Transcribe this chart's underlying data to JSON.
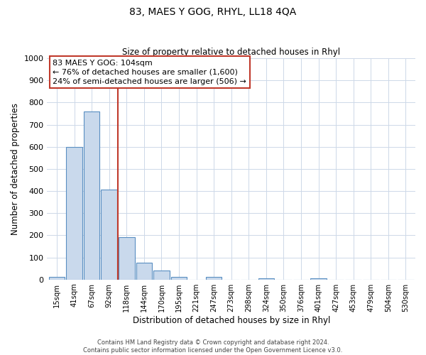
{
  "title": "83, MAES Y GOG, RHYL, LL18 4QA",
  "subtitle": "Size of property relative to detached houses in Rhyl",
  "xlabel": "Distribution of detached houses by size in Rhyl",
  "ylabel": "Number of detached properties",
  "bar_labels": [
    "15sqm",
    "41sqm",
    "67sqm",
    "92sqm",
    "118sqm",
    "144sqm",
    "170sqm",
    "195sqm",
    "221sqm",
    "247sqm",
    "273sqm",
    "298sqm",
    "324sqm",
    "350sqm",
    "376sqm",
    "401sqm",
    "427sqm",
    "453sqm",
    "479sqm",
    "504sqm",
    "530sqm"
  ],
  "bar_values": [
    12,
    600,
    760,
    405,
    190,
    75,
    40,
    12,
    0,
    13,
    0,
    0,
    7,
    0,
    0,
    7,
    0,
    0,
    0,
    0,
    0
  ],
  "bar_color": "#c9d9ec",
  "bar_edge_color": "#5a8fc2",
  "vline_x": 3.5,
  "vline_color": "#c0392b",
  "annotation_box_text": "83 MAES Y GOG: 104sqm\n← 76% of detached houses are smaller (1,600)\n24% of semi-detached houses are larger (506) →",
  "ylim": [
    0,
    1000
  ],
  "yticks": [
    0,
    100,
    200,
    300,
    400,
    500,
    600,
    700,
    800,
    900,
    1000
  ],
  "footer_text": "Contains HM Land Registry data © Crown copyright and database right 2024.\nContains public sector information licensed under the Open Government Licence v3.0.",
  "background_color": "#ffffff",
  "grid_color": "#cdd8e8"
}
